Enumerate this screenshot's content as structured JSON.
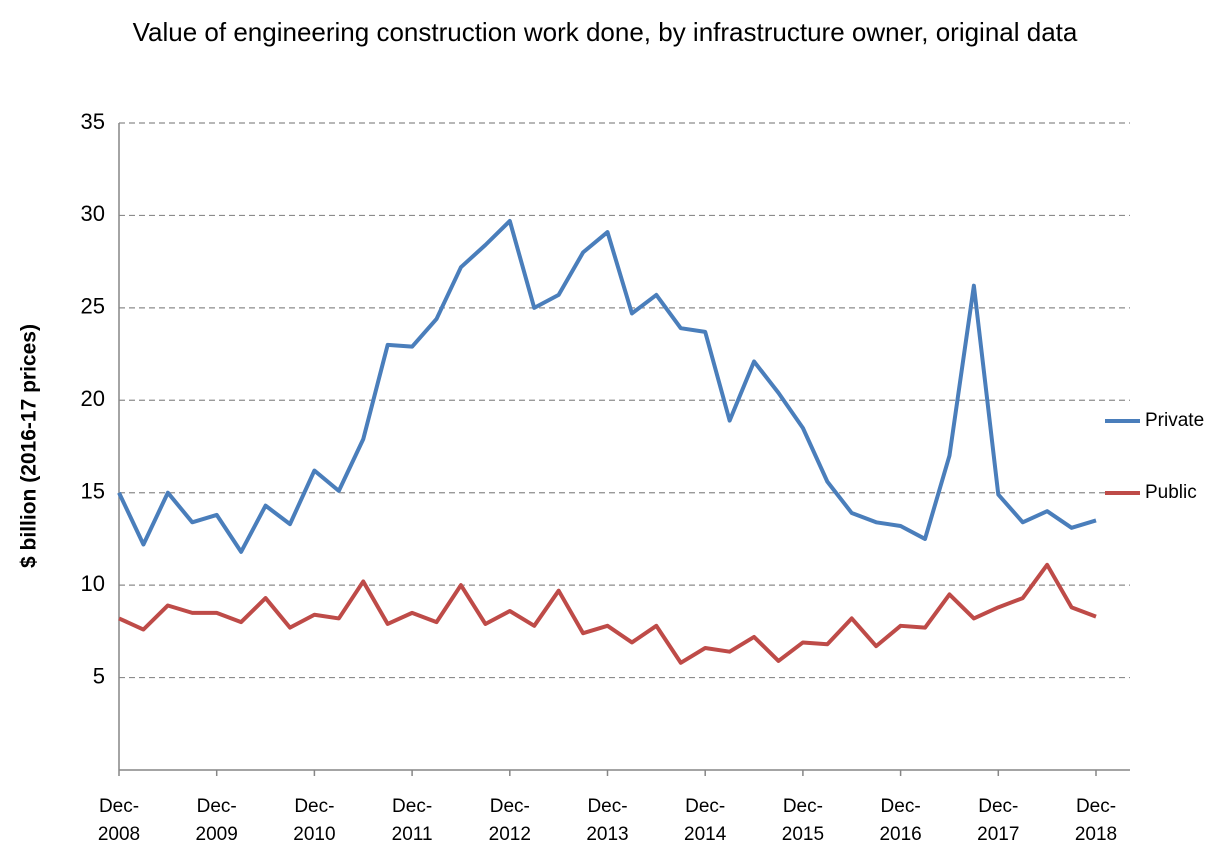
{
  "chart_data": {
    "type": "line",
    "title": "Value of engineering construction work done, by infrastructure owner, original data",
    "y_label": "$ billion (2016-17 prices)",
    "categories": [
      "Dec-2008",
      null,
      null,
      null,
      "Dec-2009",
      null,
      null,
      null,
      "Dec-2010",
      null,
      null,
      null,
      "Dec-2011",
      null,
      null,
      null,
      "Dec-2012",
      null,
      null,
      null,
      "Dec-2013",
      null,
      null,
      null,
      "Dec-2014",
      null,
      null,
      null,
      "Dec-2015",
      null,
      null,
      null,
      "Dec-2016",
      null,
      null,
      null,
      "Dec-2017",
      null,
      null,
      null,
      "Dec-2018"
    ],
    "series": [
      {
        "name": "Private",
        "color": "#4a7ebb",
        "values": [
          15.0,
          12.2,
          15.0,
          13.4,
          13.8,
          11.8,
          14.3,
          13.3,
          16.2,
          15.1,
          17.9,
          23.0,
          22.9,
          24.4,
          27.2,
          28.4,
          29.7,
          25.0,
          25.7,
          28.0,
          29.1,
          24.7,
          25.7,
          23.9,
          23.7,
          18.9,
          22.1,
          20.4,
          18.5,
          15.6,
          13.9,
          13.4,
          13.2,
          12.5,
          17.0,
          26.2,
          14.9,
          13.4,
          14.0,
          13.1,
          13.5
        ]
      },
      {
        "name": "Public",
        "color": "#be4b48",
        "values": [
          8.2,
          7.6,
          8.9,
          8.5,
          8.5,
          8.0,
          9.3,
          7.7,
          8.4,
          8.2,
          10.2,
          7.9,
          8.5,
          8.0,
          10.0,
          7.9,
          8.6,
          7.8,
          9.7,
          7.4,
          7.8,
          6.9,
          7.8,
          5.8,
          6.6,
          6.4,
          7.2,
          5.9,
          6.9,
          6.8,
          8.2,
          6.7,
          7.8,
          7.7,
          9.5,
          8.2,
          8.8,
          9.3,
          11.1,
          8.8,
          8.3
        ]
      }
    ],
    "ylim": [
      0,
      35
    ],
    "yticks": [
      5,
      10,
      15,
      20,
      25,
      30,
      35
    ],
    "grid": true,
    "legend": "right"
  }
}
